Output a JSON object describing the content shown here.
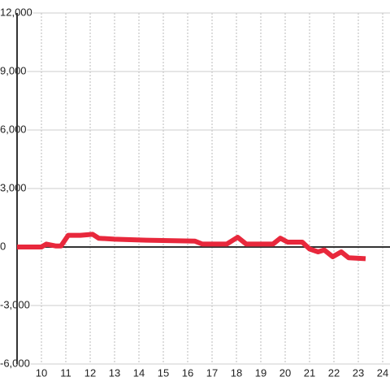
{
  "chart_data": {
    "type": "line",
    "x": [
      9,
      10,
      10.2,
      10.6,
      10.8,
      11.1,
      11.6,
      12.1,
      12.35,
      13,
      14.3,
      16.3,
      16.6,
      17.6,
      18.05,
      18.4,
      19.5,
      19.8,
      20.1,
      20.7,
      21,
      21.35,
      21.6,
      21.95,
      22.3,
      22.6,
      23.3
    ],
    "series": [
      {
        "color": "#e8283c",
        "values": [
          0,
          0,
          150,
          50,
          50,
          600,
          600,
          650,
          450,
          400,
          350,
          300,
          150,
          150,
          500,
          150,
          150,
          450,
          250,
          250,
          -100,
          -250,
          -150,
          -500,
          -250,
          -550,
          -600
        ]
      }
    ],
    "xlim": [
      9,
      24.3
    ],
    "xticks": [
      10,
      11,
      12,
      13,
      14,
      15,
      16,
      17,
      18,
      19,
      20,
      21,
      22,
      23,
      24
    ],
    "ylim": [
      -6000,
      12000
    ],
    "yticks": [
      {
        "value": -6000,
        "label": "-6,000"
      },
      {
        "value": -3000,
        "label": "-3,000"
      },
      0,
      {
        "value": 3000,
        "label": "3,000"
      },
      {
        "value": 6000,
        "label": "6,000"
      },
      {
        "value": 9000,
        "label": "9,000"
      },
      {
        "value": 12000,
        "label": "12,000"
      }
    ],
    "grid": true
  }
}
